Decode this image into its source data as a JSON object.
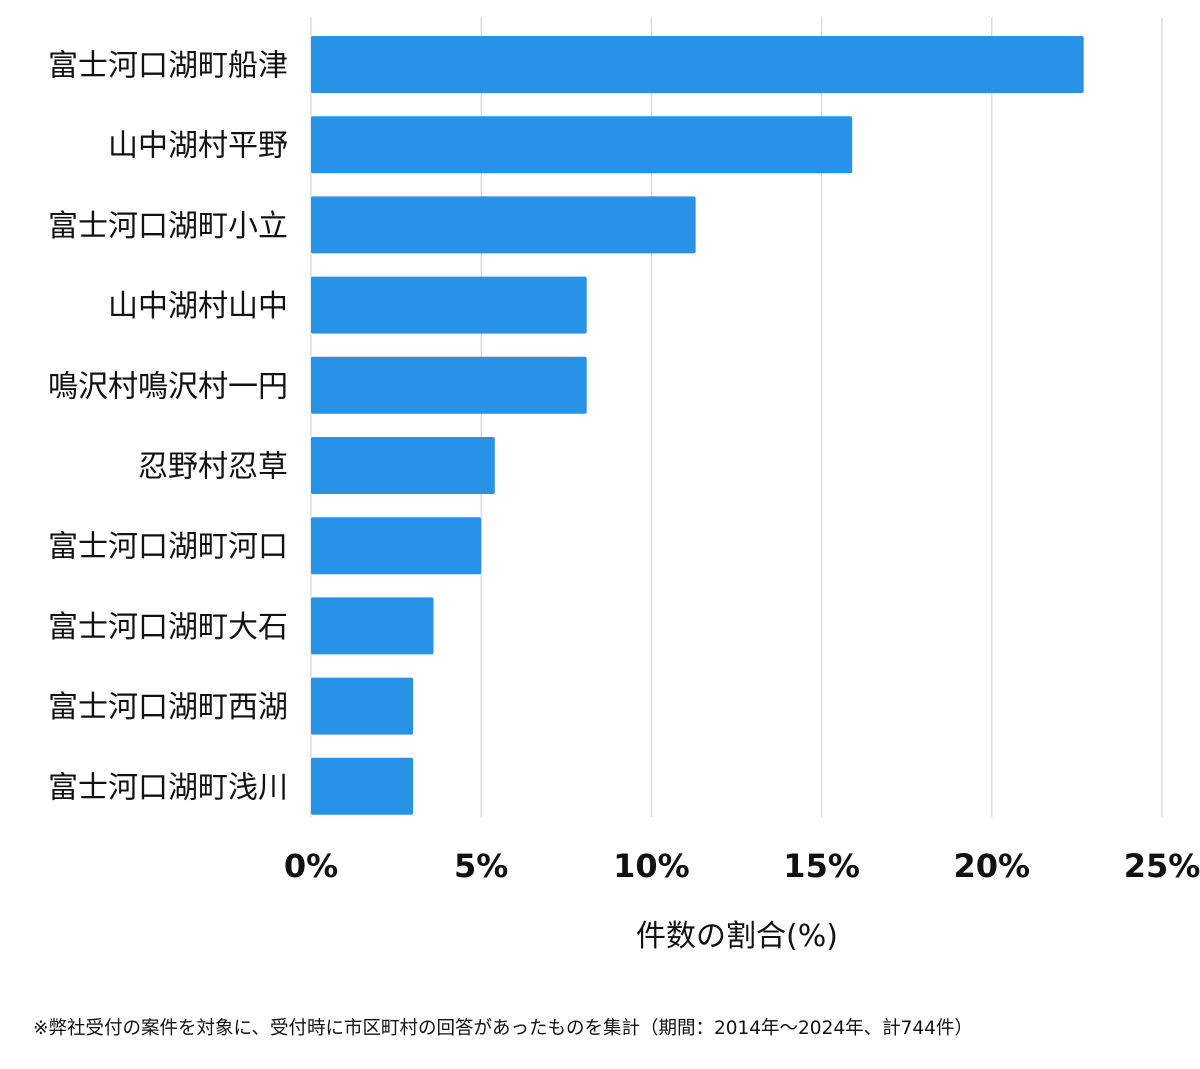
{
  "chart_data": {
    "type": "bar",
    "orientation": "horizontal",
    "categories": [
      "富士河口湖町船津",
      "山中湖村平野",
      "富士河口湖町小立",
      "山中湖村山中",
      "鳴沢村鳴沢村一円",
      "忍野村忍草",
      "富士河口湖町河口",
      "富士河口湖町大石",
      "富士河口湖町西湖",
      "富士河口湖町浅川"
    ],
    "values": [
      22.7,
      15.9,
      11.3,
      8.1,
      8.1,
      5.4,
      5.0,
      3.6,
      3.0,
      3.0
    ],
    "xlim": [
      0,
      25
    ],
    "ticks": [
      0,
      5,
      10,
      15,
      20,
      25
    ],
    "tick_labels": [
      "0%",
      "5%",
      "10%",
      "15%",
      "20%",
      "25%"
    ],
    "xlabel": "件数の割合(%)",
    "grid": true,
    "bar_color": "#2893E6"
  },
  "footnote": "※弊社受付の案件を対象に、受付時に市区町村の回答があったものを集計（期間：2014年～2024年、計744件）"
}
